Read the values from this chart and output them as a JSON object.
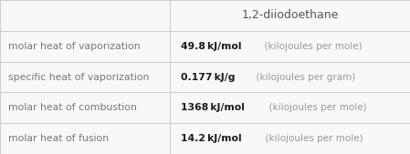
{
  "title": "1,2-diiodoethane",
  "rows": [
    {
      "label": "molar heat of vaporization",
      "value_bold": "49.8 kJ/mol",
      "value_light": "  (kilojoules per mole)"
    },
    {
      "label": "specific heat of vaporization",
      "value_bold": "0.177 kJ/g",
      "value_light": "  (kilojoules per gram)"
    },
    {
      "label": "molar heat of combustion",
      "value_bold": "1368 kJ/mol",
      "value_light": "  (kilojoules per mole)"
    },
    {
      "label": "molar heat of fusion",
      "value_bold": "14.2 kJ/mol",
      "value_light": "  (kilojoules per mole)"
    }
  ],
  "bg_color": "#f8f8f8",
  "line_color": "#cccccc",
  "label_color": "#777777",
  "value_bold_color": "#1a1a1a",
  "value_light_color": "#999999",
  "title_color": "#555555",
  "col_split": 0.415,
  "figsize": [
    4.49,
    1.69
  ],
  "dpi": 100,
  "label_fontsize": 7.8,
  "value_bold_fontsize": 7.8,
  "value_light_fontsize": 7.5,
  "title_fontsize": 9.0
}
